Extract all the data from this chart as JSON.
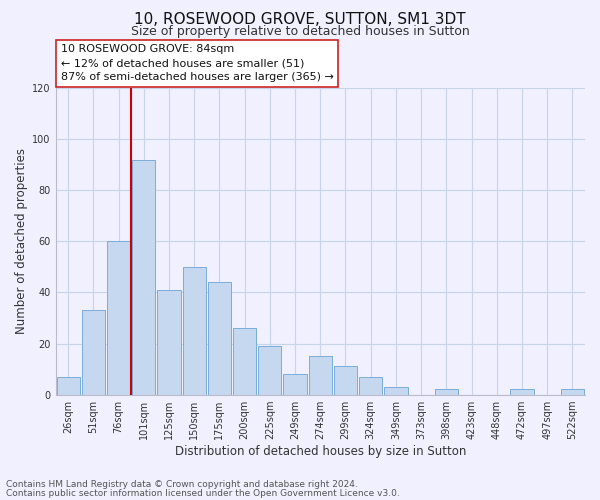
{
  "title": "10, ROSEWOOD GROVE, SUTTON, SM1 3DT",
  "subtitle": "Size of property relative to detached houses in Sutton",
  "xlabel": "Distribution of detached houses by size in Sutton",
  "ylabel": "Number of detached properties",
  "footnote1": "Contains HM Land Registry data © Crown copyright and database right 2024.",
  "footnote2": "Contains public sector information licensed under the Open Government Licence v3.0.",
  "bar_labels": [
    "26sqm",
    "51sqm",
    "76sqm",
    "101sqm",
    "125sqm",
    "150sqm",
    "175sqm",
    "200sqm",
    "225sqm",
    "249sqm",
    "274sqm",
    "299sqm",
    "324sqm",
    "349sqm",
    "373sqm",
    "398sqm",
    "423sqm",
    "448sqm",
    "472sqm",
    "497sqm",
    "522sqm"
  ],
  "bar_values": [
    7,
    33,
    60,
    92,
    41,
    50,
    44,
    26,
    19,
    8,
    15,
    11,
    7,
    3,
    0,
    2,
    0,
    0,
    2,
    0,
    2
  ],
  "bar_color": "#c5d8f0",
  "bar_edge_color": "#7aaddc",
  "vline_x": 2.5,
  "vline_color": "#cc0000",
  "annotation_line1": "10 ROSEWOOD GROVE: 84sqm",
  "annotation_line2": "← 12% of detached houses are smaller (51)",
  "annotation_line3": "87% of semi-detached houses are larger (365) →",
  "ylim": [
    0,
    120
  ],
  "yticks": [
    0,
    20,
    40,
    60,
    80,
    100,
    120
  ],
  "bg_color": "#f0f0ff",
  "grid_color": "#c8d4e8",
  "title_fontsize": 11,
  "subtitle_fontsize": 9,
  "axis_label_fontsize": 8.5,
  "tick_fontsize": 7,
  "annotation_fontsize": 8,
  "footnote_fontsize": 6.5
}
